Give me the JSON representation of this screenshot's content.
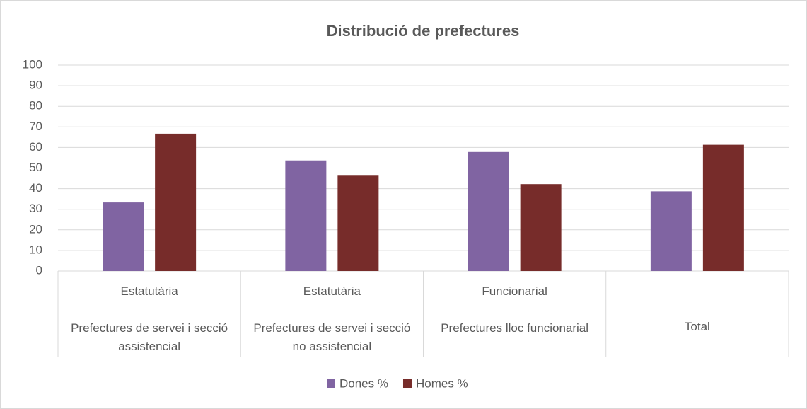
{
  "chart_data": {
    "type": "bar",
    "title": "Distribució de prefectures",
    "categories": [
      "Prefectures de servei i secció assistencial",
      "Prefectures de servei i secció no assistencial",
      "Prefectures lloc funcionarial",
      "Total"
    ],
    "category_groups": [
      "Estatutària",
      "Estatutària",
      "Funcionarial",
      null
    ],
    "series": [
      {
        "name": "Dones %",
        "color": "#8064a2",
        "values": [
          33.3,
          53.7,
          57.8,
          38.7
        ]
      },
      {
        "name": "Homes %",
        "color": "#772c2a",
        "values": [
          66.7,
          46.3,
          42.2,
          61.3
        ]
      }
    ],
    "ylim": [
      0,
      100
    ],
    "yticks": [
      0,
      10,
      20,
      30,
      40,
      50,
      60,
      70,
      80,
      90,
      100
    ],
    "grid": true,
    "legend": "bottom"
  }
}
